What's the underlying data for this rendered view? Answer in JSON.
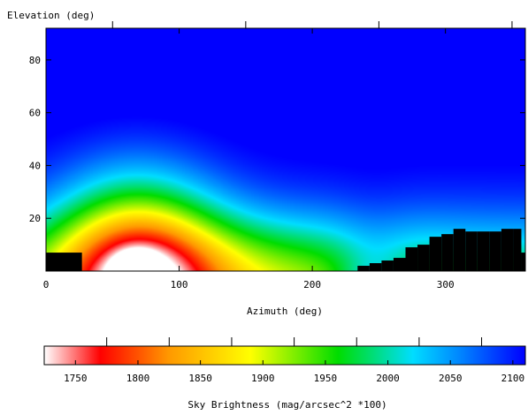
{
  "chart_data": {
    "type": "heatmap",
    "xlabel": "Azimuth (deg)",
    "ylabel": "Elevation (deg)",
    "xlim": [
      0,
      360
    ],
    "ylim": [
      0,
      92
    ],
    "x_ticks": [
      0,
      100,
      200,
      300
    ],
    "y_ticks": [
      20,
      40,
      60,
      80
    ],
    "colorbar": {
      "label": "Sky Brightness (mag/arcsec^2 *100)",
      "range": [
        1725,
        2110
      ],
      "ticks": [
        1750,
        1800,
        1850,
        1900,
        1950,
        2000,
        2050,
        2100
      ],
      "colors": [
        {
          "value": 1725,
          "color": "#ffffff"
        },
        {
          "value": 1770,
          "color": "#ff0000"
        },
        {
          "value": 1825,
          "color": "#ff9900"
        },
        {
          "value": 1890,
          "color": "#ffff00"
        },
        {
          "value": 1960,
          "color": "#00dd00"
        },
        {
          "value": 2020,
          "color": "#00ddff"
        },
        {
          "value": 2060,
          "color": "#0080ff"
        },
        {
          "value": 2110,
          "color": "#0000ff"
        }
      ]
    },
    "bright_source": {
      "azimuth": 68,
      "elevation": 0,
      "min_brightness": 1730
    },
    "horizon_profile": [
      {
        "az_start": 0,
        "az_end": 27,
        "elevation": 7
      },
      {
        "az_start": 27,
        "az_end": 234,
        "elevation": 0
      },
      {
        "az_start": 234,
        "az_end": 243,
        "elevation": 2
      },
      {
        "az_start": 243,
        "az_end": 252,
        "elevation": 3
      },
      {
        "az_start": 252,
        "az_end": 261,
        "elevation": 4
      },
      {
        "az_start": 261,
        "az_end": 270,
        "elevation": 5
      },
      {
        "az_start": 270,
        "az_end": 279,
        "elevation": 9
      },
      {
        "az_start": 279,
        "az_end": 288,
        "elevation": 10
      },
      {
        "az_start": 288,
        "az_end": 297,
        "elevation": 13
      },
      {
        "az_start": 297,
        "az_end": 306,
        "elevation": 14
      },
      {
        "az_start": 306,
        "az_end": 315,
        "elevation": 16
      },
      {
        "az_start": 315,
        "az_end": 324,
        "elevation": 15
      },
      {
        "az_start": 324,
        "az_end": 333,
        "elevation": 15
      },
      {
        "az_start": 333,
        "az_end": 342,
        "elevation": 15
      },
      {
        "az_start": 342,
        "az_end": 351,
        "elevation": 16
      },
      {
        "az_start": 351,
        "az_end": 357,
        "elevation": 16
      },
      {
        "az_start": 357,
        "az_end": 360,
        "elevation": 7
      }
    ]
  }
}
